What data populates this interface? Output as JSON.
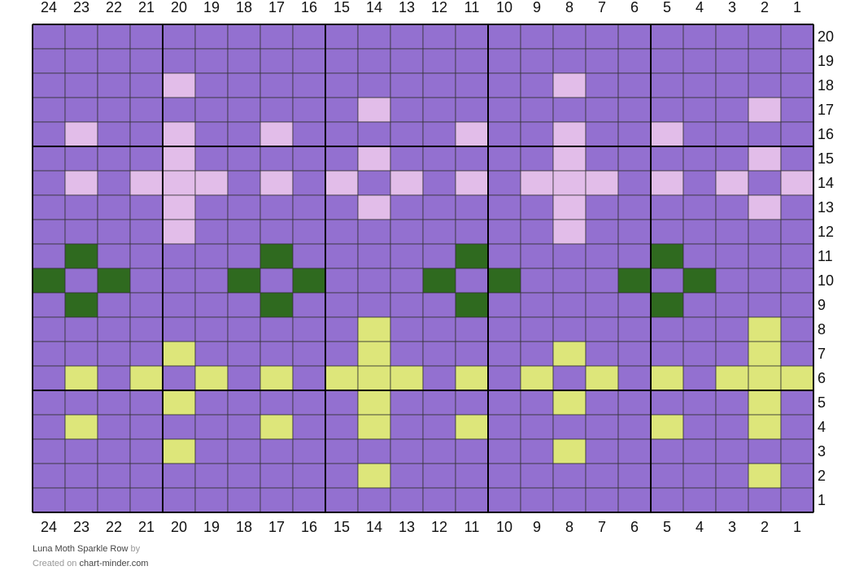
{
  "column_labels": [
    24,
    23,
    22,
    21,
    20,
    19,
    18,
    17,
    16,
    15,
    14,
    13,
    12,
    11,
    10,
    9,
    8,
    7,
    6,
    5,
    4,
    3,
    2,
    1
  ],
  "row_labels": [
    20,
    19,
    18,
    17,
    16,
    15,
    14,
    13,
    12,
    11,
    10,
    9,
    8,
    7,
    6,
    5,
    4,
    3,
    2,
    1
  ],
  "cells": [
    [
      "#9370d0",
      "#9370d0",
      "#9370d0",
      "#9370d0",
      "#9370d0",
      "#9370d0",
      "#9370d0",
      "#9370d0",
      "#9370d0",
      "#9370d0",
      "#9370d0",
      "#9370d0",
      "#9370d0",
      "#9370d0",
      "#9370d0",
      "#9370d0",
      "#9370d0",
      "#9370d0",
      "#9370d0",
      "#9370d0",
      "#9370d0",
      "#9370d0",
      "#9370d0",
      "#9370d0"
    ],
    [
      "#9370d0",
      "#9370d0",
      "#9370d0",
      "#9370d0",
      "#9370d0",
      "#9370d0",
      "#9370d0",
      "#9370d0",
      "#9370d0",
      "#9370d0",
      "#9370d0",
      "#9370d0",
      "#9370d0",
      "#9370d0",
      "#9370d0",
      "#9370d0",
      "#9370d0",
      "#9370d0",
      "#9370d0",
      "#9370d0",
      "#9370d0",
      "#9370d0",
      "#9370d0",
      "#9370d0"
    ],
    [
      "#9370d0",
      "#9370d0",
      "#9370d0",
      "#9370d0",
      "#e2bde9",
      "#9370d0",
      "#9370d0",
      "#9370d0",
      "#9370d0",
      "#9370d0",
      "#9370d0",
      "#9370d0",
      "#9370d0",
      "#9370d0",
      "#9370d0",
      "#9370d0",
      "#e2bde9",
      "#9370d0",
      "#9370d0",
      "#9370d0",
      "#9370d0",
      "#9370d0",
      "#9370d0",
      "#9370d0"
    ],
    [
      "#9370d0",
      "#9370d0",
      "#9370d0",
      "#9370d0",
      "#9370d0",
      "#9370d0",
      "#9370d0",
      "#9370d0",
      "#9370d0",
      "#9370d0",
      "#e2bde9",
      "#9370d0",
      "#9370d0",
      "#9370d0",
      "#9370d0",
      "#9370d0",
      "#9370d0",
      "#9370d0",
      "#9370d0",
      "#9370d0",
      "#9370d0",
      "#9370d0",
      "#e2bde9",
      "#9370d0"
    ],
    [
      "#9370d0",
      "#e2bde9",
      "#9370d0",
      "#9370d0",
      "#e2bde9",
      "#9370d0",
      "#9370d0",
      "#e2bde9",
      "#9370d0",
      "#9370d0",
      "#9370d0",
      "#9370d0",
      "#9370d0",
      "#e2bde9",
      "#9370d0",
      "#9370d0",
      "#e2bde9",
      "#9370d0",
      "#9370d0",
      "#e2bde9",
      "#9370d0",
      "#9370d0",
      "#9370d0",
      "#9370d0"
    ],
    [
      "#9370d0",
      "#9370d0",
      "#9370d0",
      "#9370d0",
      "#e2bde9",
      "#9370d0",
      "#9370d0",
      "#9370d0",
      "#9370d0",
      "#9370d0",
      "#e2bde9",
      "#9370d0",
      "#9370d0",
      "#9370d0",
      "#9370d0",
      "#9370d0",
      "#e2bde9",
      "#9370d0",
      "#9370d0",
      "#9370d0",
      "#9370d0",
      "#9370d0",
      "#e2bde9",
      "#9370d0"
    ],
    [
      "#9370d0",
      "#e2bde9",
      "#9370d0",
      "#e2bde9",
      "#e2bde9",
      "#e2bde9",
      "#9370d0",
      "#e2bde9",
      "#9370d0",
      "#e2bde9",
      "#9370d0",
      "#e2bde9",
      "#9370d0",
      "#e2bde9",
      "#9370d0",
      "#e2bde9",
      "#e2bde9",
      "#e2bde9",
      "#9370d0",
      "#e2bde9",
      "#9370d0",
      "#e2bde9",
      "#9370d0",
      "#e2bde9"
    ],
    [
      "#9370d0",
      "#9370d0",
      "#9370d0",
      "#9370d0",
      "#e2bde9",
      "#9370d0",
      "#9370d0",
      "#9370d0",
      "#9370d0",
      "#9370d0",
      "#e2bde9",
      "#9370d0",
      "#9370d0",
      "#9370d0",
      "#9370d0",
      "#9370d0",
      "#e2bde9",
      "#9370d0",
      "#9370d0",
      "#9370d0",
      "#9370d0",
      "#9370d0",
      "#e2bde9",
      "#9370d0"
    ],
    [
      "#9370d0",
      "#9370d0",
      "#9370d0",
      "#9370d0",
      "#e2bde9",
      "#9370d0",
      "#9370d0",
      "#9370d0",
      "#9370d0",
      "#9370d0",
      "#9370d0",
      "#9370d0",
      "#9370d0",
      "#9370d0",
      "#9370d0",
      "#9370d0",
      "#e2bde9",
      "#9370d0",
      "#9370d0",
      "#9370d0",
      "#9370d0",
      "#9370d0",
      "#9370d0",
      "#9370d0"
    ],
    [
      "#9370d0",
      "#2f6a1f",
      "#9370d0",
      "#9370d0",
      "#9370d0",
      "#9370d0",
      "#9370d0",
      "#2f6a1f",
      "#9370d0",
      "#9370d0",
      "#9370d0",
      "#9370d0",
      "#9370d0",
      "#2f6a1f",
      "#9370d0",
      "#9370d0",
      "#9370d0",
      "#9370d0",
      "#9370d0",
      "#2f6a1f",
      "#9370d0",
      "#9370d0",
      "#9370d0",
      "#9370d0"
    ],
    [
      "#2f6a1f",
      "#9370d0",
      "#2f6a1f",
      "#9370d0",
      "#9370d0",
      "#9370d0",
      "#2f6a1f",
      "#9370d0",
      "#2f6a1f",
      "#9370d0",
      "#9370d0",
      "#9370d0",
      "#2f6a1f",
      "#9370d0",
      "#2f6a1f",
      "#9370d0",
      "#9370d0",
      "#9370d0",
      "#2f6a1f",
      "#9370d0",
      "#2f6a1f",
      "#9370d0",
      "#9370d0",
      "#9370d0"
    ],
    [
      "#9370d0",
      "#2f6a1f",
      "#9370d0",
      "#9370d0",
      "#9370d0",
      "#9370d0",
      "#9370d0",
      "#2f6a1f",
      "#9370d0",
      "#9370d0",
      "#9370d0",
      "#9370d0",
      "#9370d0",
      "#2f6a1f",
      "#9370d0",
      "#9370d0",
      "#9370d0",
      "#9370d0",
      "#9370d0",
      "#2f6a1f",
      "#9370d0",
      "#9370d0",
      "#9370d0",
      "#9370d0"
    ],
    [
      "#9370d0",
      "#9370d0",
      "#9370d0",
      "#9370d0",
      "#9370d0",
      "#9370d0",
      "#9370d0",
      "#9370d0",
      "#9370d0",
      "#9370d0",
      "#dde67a",
      "#9370d0",
      "#9370d0",
      "#9370d0",
      "#9370d0",
      "#9370d0",
      "#9370d0",
      "#9370d0",
      "#9370d0",
      "#9370d0",
      "#9370d0",
      "#9370d0",
      "#dde67a",
      "#9370d0"
    ],
    [
      "#9370d0",
      "#9370d0",
      "#9370d0",
      "#9370d0",
      "#dde67a",
      "#9370d0",
      "#9370d0",
      "#9370d0",
      "#9370d0",
      "#9370d0",
      "#dde67a",
      "#9370d0",
      "#9370d0",
      "#9370d0",
      "#9370d0",
      "#9370d0",
      "#dde67a",
      "#9370d0",
      "#9370d0",
      "#9370d0",
      "#9370d0",
      "#9370d0",
      "#dde67a",
      "#9370d0"
    ],
    [
      "#9370d0",
      "#dde67a",
      "#9370d0",
      "#dde67a",
      "#9370d0",
      "#dde67a",
      "#9370d0",
      "#dde67a",
      "#9370d0",
      "#dde67a",
      "#dde67a",
      "#dde67a",
      "#9370d0",
      "#dde67a",
      "#9370d0",
      "#dde67a",
      "#9370d0",
      "#dde67a",
      "#9370d0",
      "#dde67a",
      "#9370d0",
      "#dde67a",
      "#dde67a",
      "#dde67a"
    ],
    [
      "#9370d0",
      "#9370d0",
      "#9370d0",
      "#9370d0",
      "#dde67a",
      "#9370d0",
      "#9370d0",
      "#9370d0",
      "#9370d0",
      "#9370d0",
      "#dde67a",
      "#9370d0",
      "#9370d0",
      "#9370d0",
      "#9370d0",
      "#9370d0",
      "#dde67a",
      "#9370d0",
      "#9370d0",
      "#9370d0",
      "#9370d0",
      "#9370d0",
      "#dde67a",
      "#9370d0"
    ],
    [
      "#9370d0",
      "#dde67a",
      "#9370d0",
      "#9370d0",
      "#9370d0",
      "#9370d0",
      "#9370d0",
      "#dde67a",
      "#9370d0",
      "#9370d0",
      "#dde67a",
      "#9370d0",
      "#9370d0",
      "#dde67a",
      "#9370d0",
      "#9370d0",
      "#9370d0",
      "#9370d0",
      "#9370d0",
      "#dde67a",
      "#9370d0",
      "#9370d0",
      "#dde67a",
      "#9370d0"
    ],
    [
      "#9370d0",
      "#9370d0",
      "#9370d0",
      "#9370d0",
      "#dde67a",
      "#9370d0",
      "#9370d0",
      "#9370d0",
      "#9370d0",
      "#9370d0",
      "#9370d0",
      "#9370d0",
      "#9370d0",
      "#9370d0",
      "#9370d0",
      "#9370d0",
      "#dde67a",
      "#9370d0",
      "#9370d0",
      "#9370d0",
      "#9370d0",
      "#9370d0",
      "#9370d0",
      "#9370d0"
    ],
    [
      "#9370d0",
      "#9370d0",
      "#9370d0",
      "#9370d0",
      "#9370d0",
      "#9370d0",
      "#9370d0",
      "#9370d0",
      "#9370d0",
      "#9370d0",
      "#dde67a",
      "#9370d0",
      "#9370d0",
      "#9370d0",
      "#9370d0",
      "#9370d0",
      "#9370d0",
      "#9370d0",
      "#9370d0",
      "#9370d0",
      "#9370d0",
      "#9370d0",
      "#dde67a",
      "#9370d0"
    ],
    [
      "#9370d0",
      "#9370d0",
      "#9370d0",
      "#9370d0",
      "#9370d0",
      "#9370d0",
      "#9370d0",
      "#9370d0",
      "#9370d0",
      "#9370d0",
      "#9370d0",
      "#9370d0",
      "#9370d0",
      "#9370d0",
      "#9370d0",
      "#9370d0",
      "#9370d0",
      "#9370d0",
      "#9370d0",
      "#9370d0",
      "#9370d0",
      "#9370d0",
      "#9370d0",
      "#9370d0"
    ]
  ],
  "footer": {
    "title": "Luna Moth Sparkle Row",
    "by": "by",
    "created_on": "Created on",
    "site": "chart-minder.com"
  }
}
